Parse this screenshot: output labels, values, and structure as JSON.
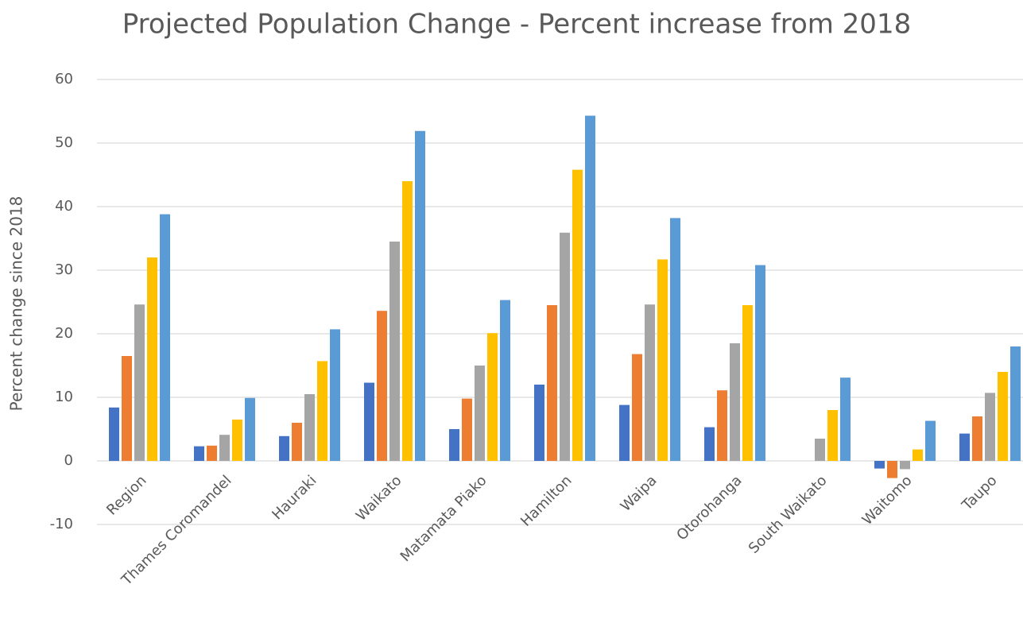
{
  "chart_data": {
    "type": "bar",
    "title": "Projected Population Change - Percent increase from 2018",
    "y_label": "Percent change since 2018",
    "categories": [
      "Region",
      "Thames Coromandel",
      "Hauraki",
      "Waikato",
      "Matamata Piako",
      "Hamilton",
      "Waipa",
      "Otorohanga",
      "South Waikato",
      "Waitomo",
      "Taupo"
    ],
    "series": [
      {
        "color": "#4472c4",
        "values": [
          8.4,
          2.3,
          3.9,
          12.3,
          5.0,
          12.0,
          8.8,
          5.3,
          0,
          -1.2,
          4.3
        ]
      },
      {
        "color": "#ed7d31",
        "values": [
          16.5,
          2.4,
          6.0,
          23.6,
          9.8,
          24.5,
          16.8,
          11.1,
          0,
          -2.7,
          7.0
        ]
      },
      {
        "color": "#a5a5a5",
        "values": [
          24.6,
          4.1,
          10.5,
          34.5,
          15.0,
          35.9,
          24.6,
          18.5,
          3.5,
          -1.3,
          10.7
        ]
      },
      {
        "color": "#ffc000",
        "values": [
          32.0,
          6.5,
          15.7,
          44.0,
          20.1,
          45.8,
          31.7,
          24.5,
          8.0,
          1.8,
          14.0
        ]
      },
      {
        "color": "#5b9bd5",
        "values": [
          38.8,
          9.9,
          20.7,
          51.9,
          25.3,
          54.3,
          38.2,
          30.8,
          13.1,
          6.3,
          18.0
        ]
      }
    ],
    "ylim": [
      -10,
      60
    ],
    "yticks": [
      -10,
      0,
      10,
      20,
      30,
      40,
      50,
      60
    ],
    "grid": true
  }
}
